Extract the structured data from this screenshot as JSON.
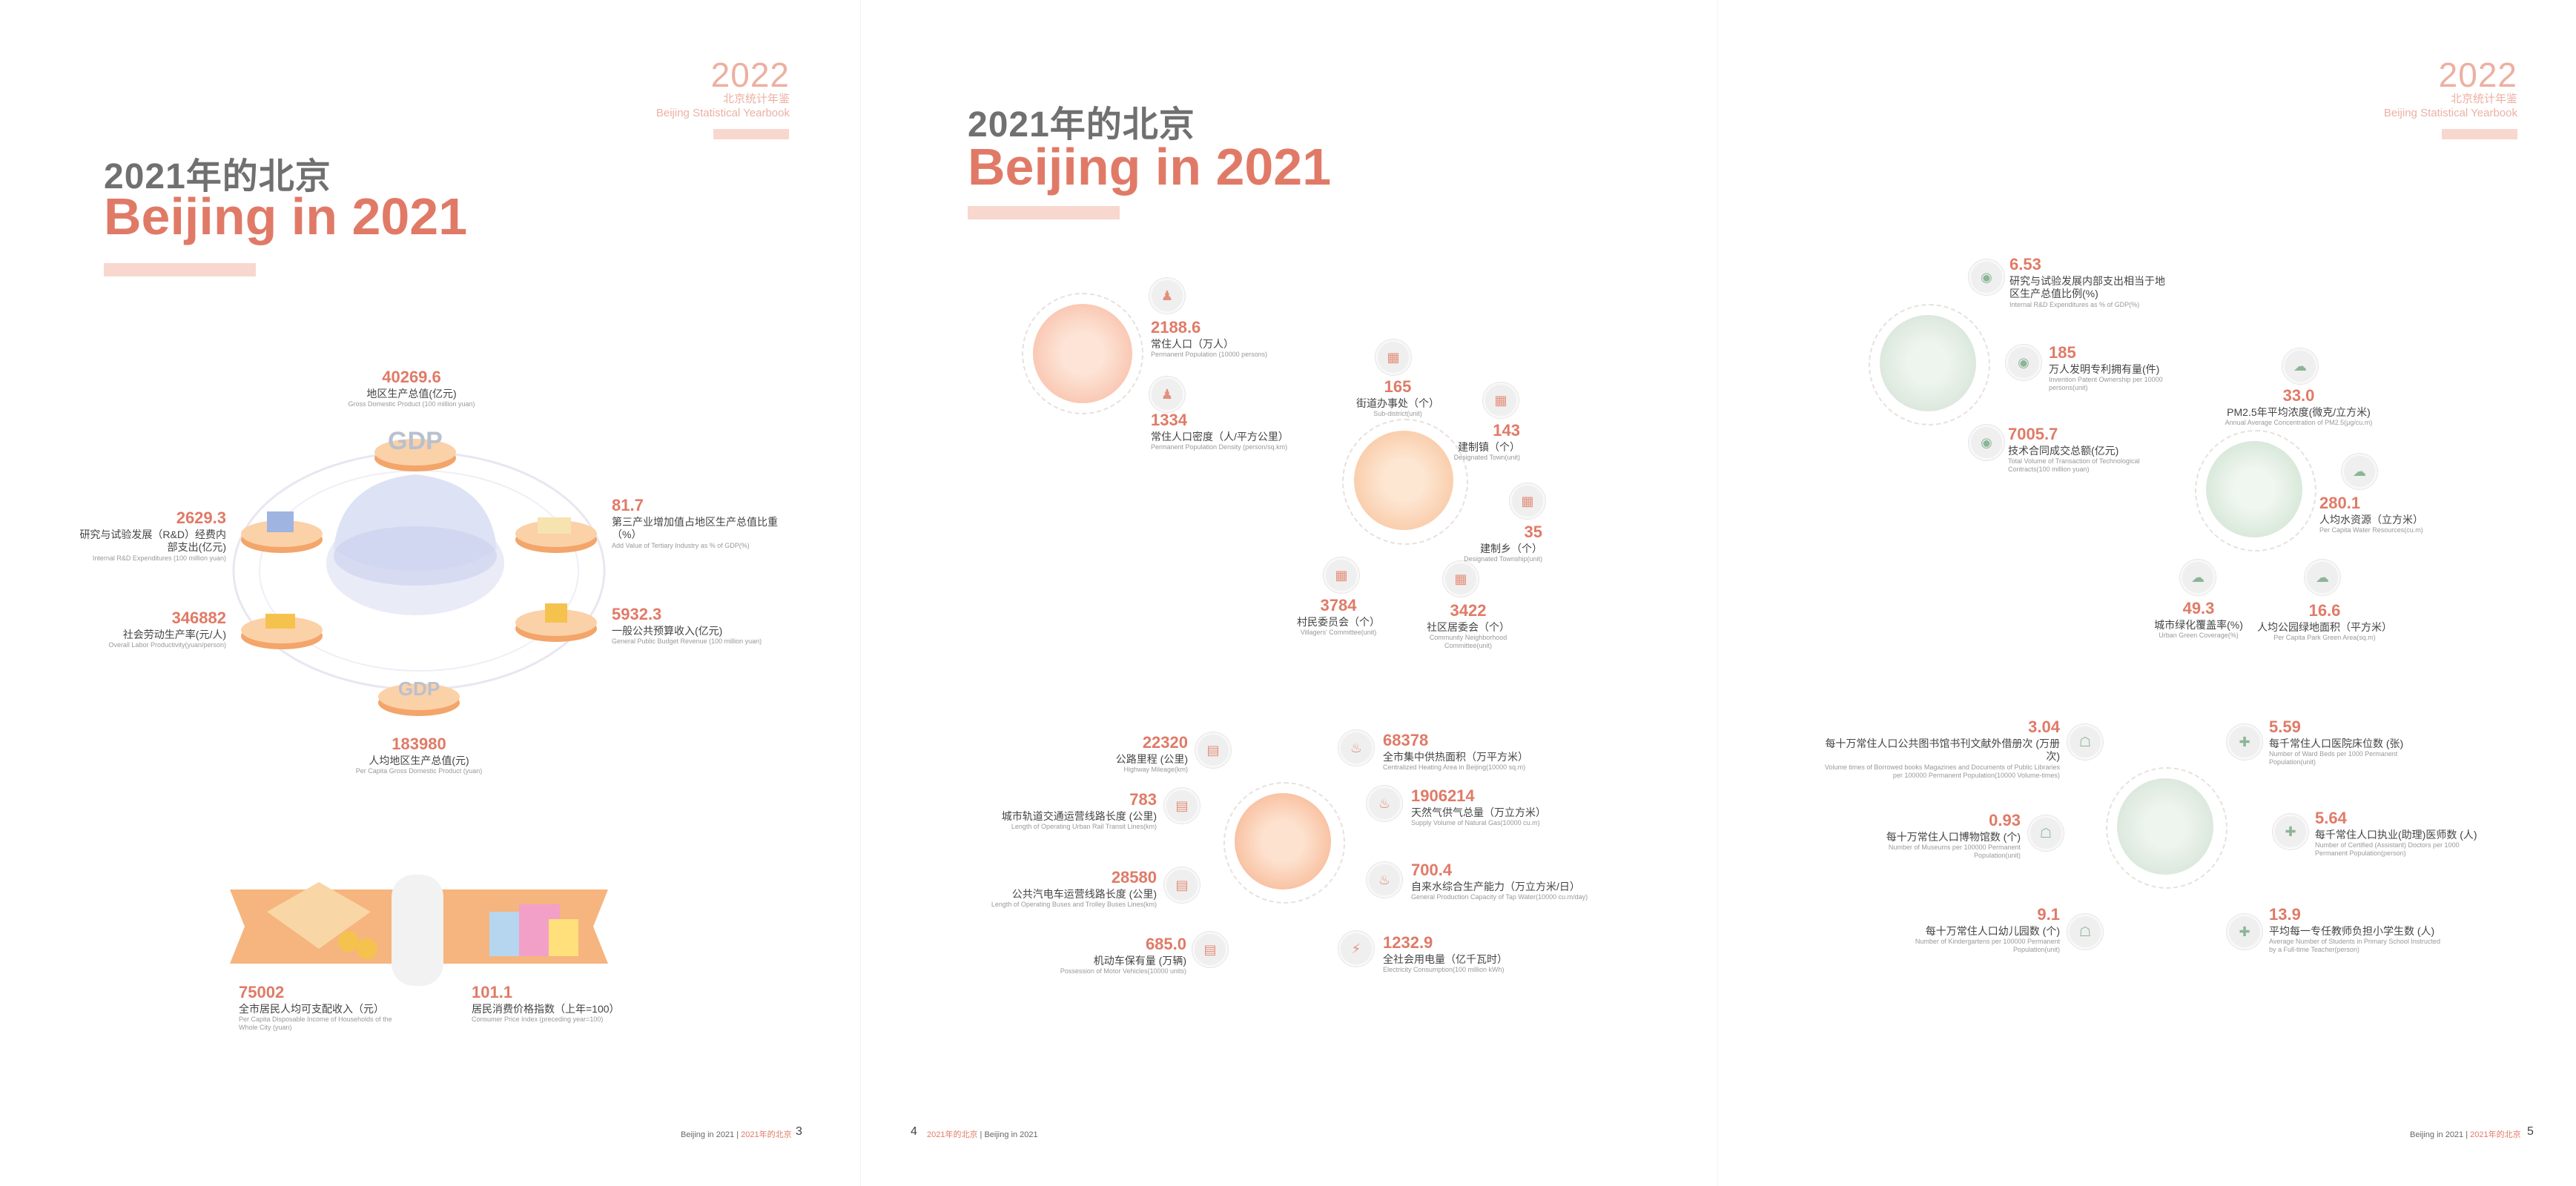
{
  "yearbook": {
    "year": "2022",
    "cn": "北京统计年鉴",
    "en": "Beijing Statistical Yearbook"
  },
  "title": {
    "cn": "2021年的北京",
    "en": "Beijing in 2021"
  },
  "page3": {
    "gdp_label": "GDP",
    "items": [
      {
        "value": "40269.6",
        "cn": "地区生产总值(亿元)",
        "en": "Gross Domestic Product (100 million yuan)"
      },
      {
        "value": "81.7",
        "cn": "第三产业增加值占地区生产总值比重（%）",
        "en": "Add Value of Tertiary Industry as % of GDP(%)"
      },
      {
        "value": "5932.3",
        "cn": "一般公共预算收入(亿元)",
        "en": "General Public Budget Revenue (100 million yuan)"
      },
      {
        "value": "183980",
        "cn": "人均地区生产总值(元)",
        "en": "Per Capita Gross Domestic Product (yuan)"
      },
      {
        "value": "346882",
        "cn": "社会劳动生产率(元/人)",
        "en": "Overall Labor Productivity(yuan/person)"
      },
      {
        "value": "2629.3",
        "cn": "研究与试验发展（R&D）经费内部支出(亿元)",
        "en": "Internal R&D Expenditures (100 million yuan)"
      },
      {
        "value": "75002",
        "cn": "全市居民人均可支配收入（元）",
        "en": "Per Capita Disposable Income of Households of the Whole City (yuan)"
      },
      {
        "value": "101.1",
        "cn": "居民消费价格指数（上年=100）",
        "en": "Consumer Price Index (preceding year=100)"
      }
    ],
    "footer": {
      "en": "Beijing in 2021",
      "cn": "2021年的北京",
      "page": "3"
    }
  },
  "page4": {
    "population": [
      {
        "value": "2188.6",
        "cn": "常住人口（万人）",
        "en": "Permanent Population (10000 persons)"
      },
      {
        "value": "1334",
        "cn": "常住人口密度（人/平方公里）",
        "en": "Permanent Population Density (person/sq.km)"
      }
    ],
    "admin": [
      {
        "value": "165",
        "cn": "街道办事处（个）",
        "en": "Sub-district(unit)"
      },
      {
        "value": "143",
        "cn": "建制镇（个）",
        "en": "Designated Town(unit)"
      },
      {
        "value": "35",
        "cn": "建制乡（个）",
        "en": "Designated Township(unit)"
      },
      {
        "value": "3422",
        "cn": "社区居委会（个）",
        "en": "Community Neighborhood Committee(unit)"
      },
      {
        "value": "3784",
        "cn": "村民委员会（个）",
        "en": "Villagers' Committee(unit)"
      }
    ],
    "transport": [
      {
        "value": "22320",
        "cn": "公路里程 (公里)",
        "en": "Highway Mileage(km)"
      },
      {
        "value": "783",
        "cn": "城市轨道交通运营线路长度 (公里)",
        "en": "Length of Operating Urban Rail Transit Lines(km)"
      },
      {
        "value": "28580",
        "cn": "公共汽电车运营线路长度 (公里)",
        "en": "Length of Operating Buses and Trolley Buses Lines(km)"
      },
      {
        "value": "685.0",
        "cn": "机动车保有量 (万辆)",
        "en": "Possession of Motor Vehicles(10000 units)"
      }
    ],
    "utility": [
      {
        "value": "68378",
        "cn": "全市集中供热面积（万平方米）",
        "en": "Centralized Heating Area in Beijing(10000 sq.m)"
      },
      {
        "value": "1906214",
        "cn": "天然气供气总量（万立方米）",
        "en": "Supply Volume of Natural Gas(10000 cu.m)"
      },
      {
        "value": "700.4",
        "cn": "自来水综合生产能力（万立方米/日）",
        "en": "General Production Capacity of Tap Water(10000 cu.m/day)"
      },
      {
        "value": "1232.9",
        "cn": "全社会用电量（亿千瓦时）",
        "en": "Electricity Consumption(100 million kWh)"
      }
    ],
    "footer": {
      "page": "4",
      "cn": "2021年的北京",
      "en": "Beijing in 2021"
    }
  },
  "page5": {
    "tech": [
      {
        "value": "6.53",
        "cn": "研究与试验发展内部支出相当于地区生产总值比例(%)",
        "en": "Internal R&D Expenditures as % of GDP(%)"
      },
      {
        "value": "185",
        "cn": "万人发明专利拥有量(件)",
        "en": "Invention Patent Ownership per 10000 persons(unit)"
      },
      {
        "value": "7005.7",
        "cn": "技术合同成交总额(亿元)",
        "en": "Total Volume of Transaction of Technological Contracts(100 million yuan)"
      }
    ],
    "env": [
      {
        "value": "33.0",
        "cn": "PM2.5年平均浓度(微克/立方米)",
        "en": "Annual Average Concentration of PM2.5(μg/cu.m)"
      },
      {
        "value": "280.1",
        "cn": "人均水资源（立方米）",
        "en": "Per Capita Water Resources(cu.m)"
      },
      {
        "value": "16.6",
        "cn": "人均公园绿地面积（平方米）",
        "en": "Per Capita Park Green Area(sq.m)"
      },
      {
        "value": "49.3",
        "cn": "城市绿化覆盖率(%)",
        "en": "Urban Green Coverage(%)"
      }
    ],
    "social": [
      {
        "value": "3.04",
        "cn": "每十万常住人口公共图书馆书刊文献外借册次 (万册次)",
        "en": "Volume times of Borrowed books Magazines and Documents of Public Libraries per 100000 Permanent Population(10000 Volume-times)"
      },
      {
        "value": "0.93",
        "cn": "每十万常住人口博物馆数 (个)",
        "en": "Number of Museums per 100000 Permanent Population(unit)"
      },
      {
        "value": "9.1",
        "cn": "每十万常住人口幼儿园数 (个)",
        "en": "Number of Kindergartens per 100000 Permanent Population(unit)"
      },
      {
        "value": "5.59",
        "cn": "每千常住人口医院床位数 (张)",
        "en": "Number of Ward Beds per 1000 Permanent Population(unit)"
      },
      {
        "value": "5.64",
        "cn": "每千常住人口执业(助理)医师数 (人)",
        "en": "Number of Certified (Assistant) Doctors per 1000 Permanent Population(person)"
      },
      {
        "value": "13.9",
        "cn": "平均每一专任教师负担小学生数 (人)",
        "en": "Average Number of Students in Primary School Instructed by a Full-time Teacher(person)"
      }
    ],
    "footer": {
      "en": "Beijing in 2021",
      "cn": "2021年的北京",
      "page": "5"
    }
  }
}
